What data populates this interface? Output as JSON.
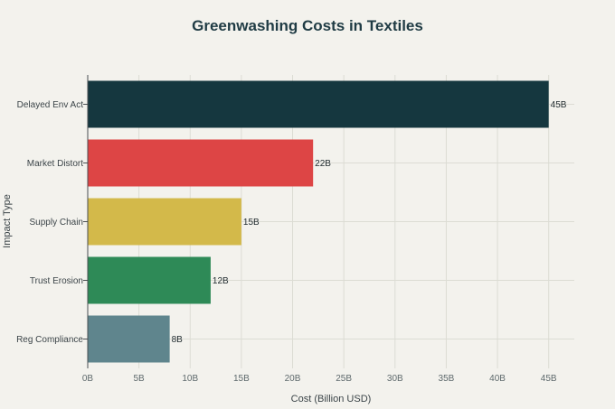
{
  "chart_data": {
    "type": "bar",
    "orientation": "horizontal",
    "title": "Greenwashing Costs in Textiles",
    "xlabel": "Cost (Billion USD)",
    "ylabel": "Impact Type",
    "categories": [
      "Delayed Env Act",
      "Market Distort",
      "Supply Chain",
      "Trust Erosion",
      "Reg Compliance"
    ],
    "values": [
      45,
      22,
      15,
      12,
      8
    ],
    "data_labels": [
      "45B",
      "22B",
      "15B",
      "12B",
      "8B"
    ],
    "colors": [
      "#15373f",
      "#dd4545",
      "#d3b94a",
      "#2e8a57",
      "#5f858d"
    ],
    "xlim": [
      0,
      47.5
    ],
    "xticks": [
      0,
      5,
      10,
      15,
      20,
      25,
      30,
      35,
      40,
      45
    ],
    "xtick_labels": [
      "0B",
      "5B",
      "10B",
      "15B",
      "20B",
      "25B",
      "30B",
      "35B",
      "40B",
      "45B"
    ],
    "grid": true,
    "legend": "none"
  }
}
